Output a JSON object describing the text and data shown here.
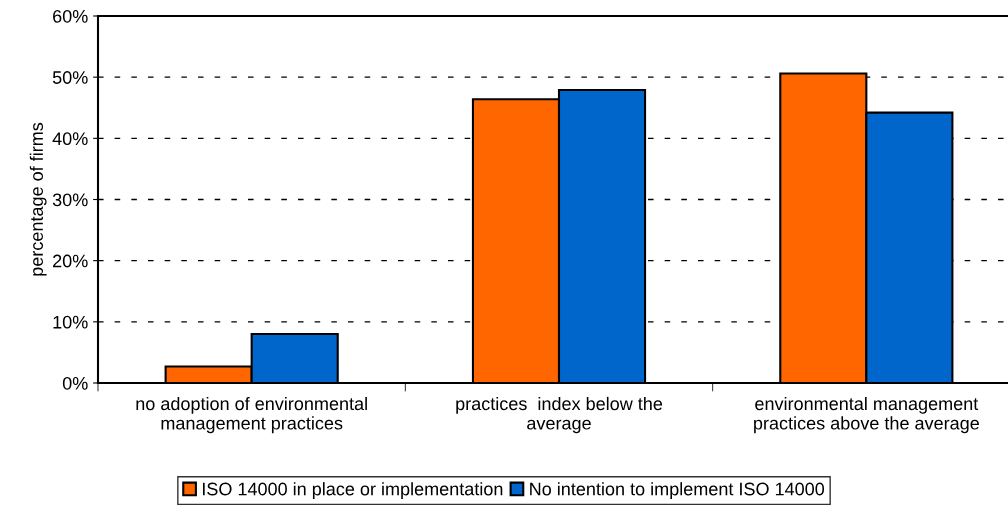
{
  "chart_data": {
    "type": "bar",
    "ylabel": "percentage of firms",
    "categories": [
      "no adoption of environmental\nmanagement practices",
      "practices  index below the\naverage",
      "environmental management\npractices above the average"
    ],
    "series": [
      {
        "name": "ISO 14000 in place or implementation",
        "color": "#ff6600",
        "values": [
          2.7,
          46.4,
          50.6
        ]
      },
      {
        "name": "No intention to implement ISO 14000",
        "color": "#0066cc",
        "values": [
          8.0,
          47.9,
          44.2
        ]
      }
    ],
    "ylim": [
      0,
      60
    ],
    "yticks": [
      {
        "value": 0,
        "label": "0%"
      },
      {
        "value": 10,
        "label": "10%"
      },
      {
        "value": 20,
        "label": "20%"
      },
      {
        "value": 30,
        "label": "30%"
      },
      {
        "value": 40,
        "label": "40%"
      },
      {
        "value": 50,
        "label": "50%"
      },
      {
        "value": 60,
        "label": "60%"
      }
    ],
    "grid": "y",
    "legend": "bottom"
  }
}
